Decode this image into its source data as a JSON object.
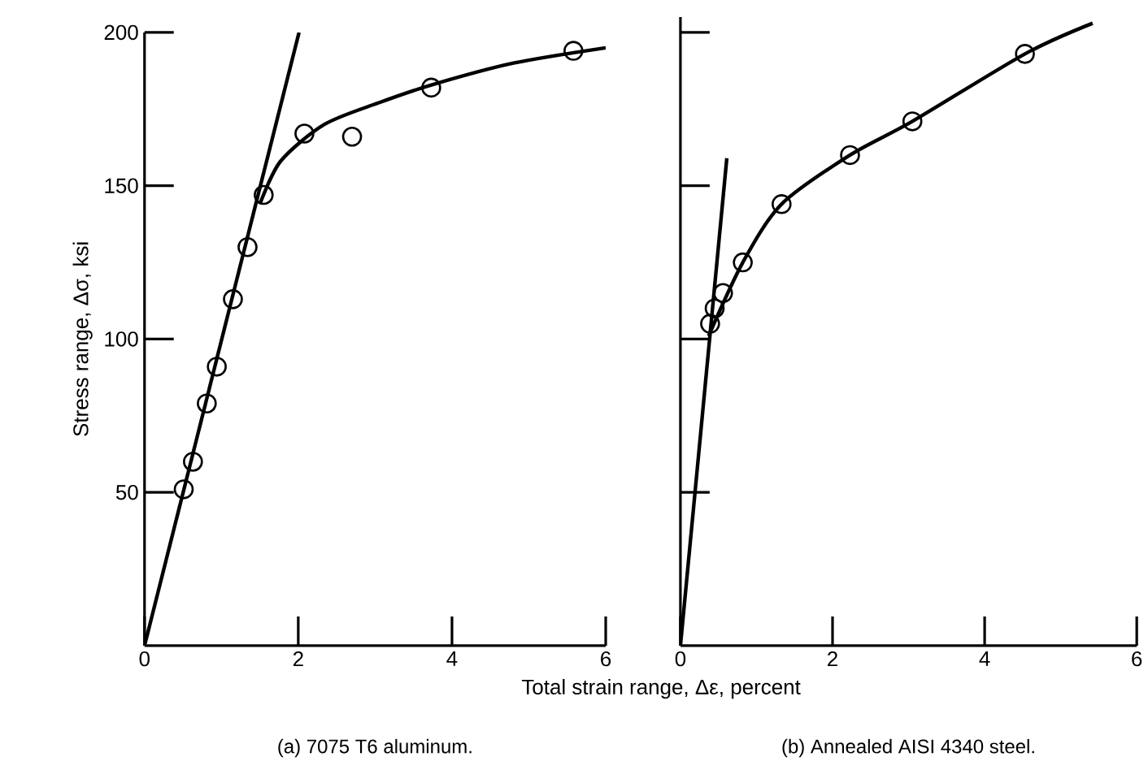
{
  "chart_data": [
    {
      "type": "scatter",
      "title": "(a) 7075 T6 aluminum.",
      "xlabel": "Total strain range, Δε, percent",
      "ylabel": "Stress range, Δσ, ksi",
      "xlim": [
        0,
        6
      ],
      "ylim": [
        0,
        200
      ],
      "xticks": [
        0,
        2,
        4,
        6
      ],
      "yticks": [
        50,
        100,
        150,
        200
      ],
      "series": [
        {
          "marker": "circle",
          "color": "#000000",
          "x": [
            0.51,
            0.63,
            0.81,
            0.94,
            1.15,
            1.34,
            1.55,
            2.08,
            2.7,
            3.73,
            5.58
          ],
          "values": [
            51,
            60,
            79,
            91,
            113,
            130,
            147,
            167,
            166,
            182,
            194
          ]
        },
        {
          "type": "line",
          "color": "#000000",
          "x": [
            0,
            2.01
          ],
          "values": [
            0,
            200
          ]
        },
        {
          "type": "line",
          "color": "#000000",
          "x": [
            1.5,
            1.77,
            2.34,
            3.04,
            3.75,
            4.8,
            6.0
          ],
          "values": [
            144,
            158,
            170,
            177,
            183,
            190,
            195
          ]
        }
      ]
    },
    {
      "type": "scatter",
      "title": "(b) Annealed AISI 4340 steel.",
      "xlim": [
        0,
        6
      ],
      "ylim": [
        0,
        205
      ],
      "xticks": [
        0,
        2,
        4,
        6
      ],
      "yticks": [
        50,
        100,
        150,
        200
      ],
      "tick_labels": "x",
      "series": [
        {
          "marker": "circle",
          "color": "#000000",
          "x": [
            0.39,
            0.45,
            0.56,
            0.82,
            1.33,
            2.23,
            3.05,
            4.53
          ],
          "values": [
            105,
            110,
            115,
            125,
            144,
            160,
            171,
            193
          ]
        },
        {
          "type": "line",
          "color": "#000000",
          "x": [
            0,
            0.61
          ],
          "values": [
            0,
            159
          ]
        },
        {
          "type": "line",
          "color": "#000000",
          "x": [
            0.37,
            0.82,
            1.33,
            2.23,
            3.05,
            4.53,
            5.42
          ],
          "values": [
            101,
            125,
            144,
            160,
            171,
            193,
            203
          ]
        }
      ]
    }
  ]
}
